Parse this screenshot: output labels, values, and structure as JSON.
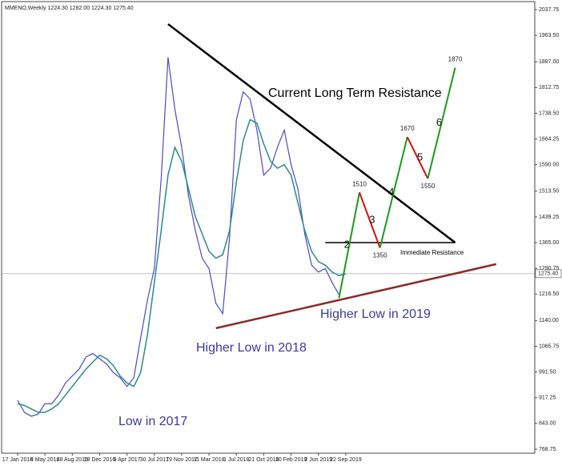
{
  "chart_data": {
    "type": "line",
    "header": "MMENO,Weekly  1224.30 1282.00 1224.30 1275.40",
    "categories": [
      "17 Jan 2016",
      null,
      null,
      null,
      "8 May 2016",
      null,
      null,
      null,
      "28 Aug 2016",
      null,
      null,
      null,
      "18 Dec 2016",
      null,
      null,
      null,
      "9 Apr 2017",
      null,
      null,
      null,
      "30 Jul 2017",
      null,
      null,
      null,
      "19 Nov 2017",
      null,
      null,
      null,
      "11 Mar 2018",
      null,
      null,
      null,
      "1 Jul 2018",
      null,
      null,
      null,
      "21 Oct 2018",
      null,
      null,
      null,
      "10 Feb 2019",
      null,
      null,
      null,
      "2 Jun 2019",
      null,
      null,
      null,
      "22 Sep 2019",
      null,
      null,
      null,
      null,
      null,
      null,
      null,
      null,
      null,
      null,
      null,
      null,
      null,
      null,
      null,
      null,
      null,
      null,
      null,
      null,
      null,
      null,
      null,
      null,
      null,
      null,
      null
    ],
    "series": [
      {
        "color": "#4a4ac8",
        "values": [
          910,
          875,
          864,
          870,
          900,
          900,
          925,
          960,
          980,
          1000,
          1035,
          1045,
          1030,
          1015,
          990,
          975,
          950,
          975,
          1090,
          1200,
          1290,
          1550,
          1900,
          1750,
          1640,
          1500,
          1400,
          1320,
          1290,
          1190,
          1160,
          1380,
          1720,
          1800,
          1780,
          1690,
          1560,
          1580,
          1640,
          1690,
          1590,
          1520,
          1390,
          1300,
          1280,
          1290,
          1250,
          1215,
          null,
          null,
          null,
          null,
          null,
          null,
          null,
          null,
          null,
          null,
          null,
          null,
          null,
          null,
          null,
          null,
          null,
          null,
          null,
          null,
          null,
          null,
          null,
          null,
          null,
          null,
          null,
          null
        ]
      },
      {
        "color": "#2a8a8a",
        "values": [
          900,
          895,
          885,
          875,
          875,
          885,
          900,
          925,
          950,
          975,
          1000,
          1020,
          1040,
          1030,
          1010,
          980,
          960,
          950,
          990,
          1100,
          1250,
          1400,
          1560,
          1640,
          1600,
          1520,
          1440,
          1390,
          1340,
          1320,
          1330,
          1400,
          1540,
          1660,
          1720,
          1710,
          1650,
          1600,
          1580,
          1590,
          1560,
          1480,
          1400,
          1340,
          1310,
          1300,
          1280,
          1270,
          1275,
          null,
          null,
          null,
          null,
          null,
          null,
          null,
          null,
          null,
          null,
          null,
          null,
          null,
          null,
          null,
          null,
          null,
          null,
          null,
          null,
          null,
          null,
          null,
          null,
          null,
          null,
          null
        ]
      }
    ],
    "projection": {
      "up_color": "#1a9a1a",
      "down_color": "#d01010",
      "values": [
        null,
        null,
        null,
        null,
        null,
        null,
        null,
        null,
        null,
        null,
        null,
        null,
        null,
        null,
        null,
        null,
        null,
        null,
        null,
        null,
        null,
        null,
        null,
        null,
        null,
        null,
        null,
        null,
        null,
        null,
        null,
        null,
        null,
        null,
        null,
        null,
        null,
        null,
        null,
        null,
        null,
        null,
        null,
        null,
        null,
        null,
        null,
        1205,
        null,
        null,
        1510,
        null,
        null,
        1350,
        null,
        null,
        null,
        1670,
        null,
        null,
        1550,
        null,
        null,
        null,
        1870,
        null,
        null,
        null,
        null,
        null,
        null,
        null,
        null,
        null,
        null,
        null
      ],
      "wave_labels": [
        "2",
        "3",
        "4",
        "5",
        "6"
      ]
    },
    "trend_lines": [
      {
        "from": [
          22,
          1996
        ],
        "to": [
          64,
          1365
        ],
        "color": "#000000"
      },
      {
        "from": [
          29,
          1118
        ],
        "to": [
          70,
          1303
        ],
        "color": "#8b2a2a"
      },
      {
        "from": [
          45,
          1365
        ],
        "to": [
          64,
          1365
        ],
        "color": "#000000"
      }
    ],
    "annotations": [
      "Current Long Term Resistance",
      "Immediate Resistance",
      "Higher Low in 2018",
      "Higher Low in 2019",
      "Low in 2017"
    ],
    "last_price": {
      "value": 1275.4,
      "label": "1275.40"
    },
    "ylim": [
      768.75,
      2037.75
    ],
    "yticks": [
      768.75,
      {
        "value": 843,
        "label": "843.00"
      },
      917.25,
      {
        "value": 991.5,
        "label": "991.50"
      },
      1065.75,
      {
        "value": 1140,
        "label": "1140.00"
      },
      {
        "value": 1216.5,
        "label": "1216.50"
      },
      1290.75,
      {
        "value": 1365,
        "label": "1365.00"
      },
      1439.25,
      {
        "value": 1513.5,
        "label": "1513.50"
      },
      {
        "value": 1590,
        "label": "1590.00"
      },
      1664.25,
      {
        "value": 1738.5,
        "label": "1738.50"
      },
      1812.75,
      {
        "value": 1887,
        "label": "1887.00"
      },
      {
        "value": 1963.5,
        "label": "1963.50"
      },
      2037.75
    ]
  }
}
